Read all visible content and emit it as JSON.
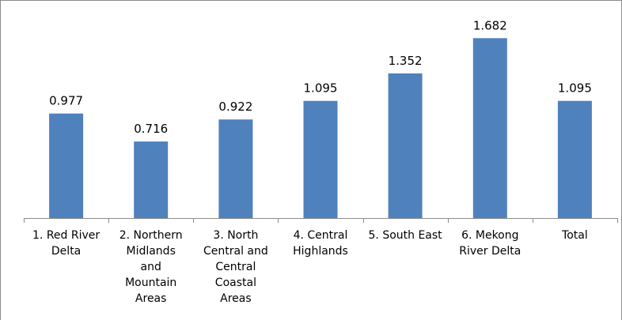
{
  "chart_data": {
    "type": "bar",
    "categories": [
      "1. Red River\nDelta",
      "2. Northern\nMidlands\nand\nMountain\nAreas",
      "3. North\nCentral and\nCentral\nCoastal\nAreas",
      "4. Central\nHighlands",
      "5. South East",
      "6. Mekong\nRiver Delta",
      "Total"
    ],
    "values": [
      0.977,
      0.716,
      0.922,
      1.095,
      1.352,
      1.682,
      1.095
    ],
    "value_labels": [
      "0.977",
      "0.716",
      "0.922",
      "1.095",
      "1.352",
      "1.682",
      "1.095"
    ],
    "title": "",
    "xlabel": "",
    "ylabel": "",
    "ylim": [
      0,
      1.8
    ],
    "grid": false,
    "legend": "none",
    "bar_color": "#4f81bd",
    "axis_color": "#8c8c8c"
  }
}
